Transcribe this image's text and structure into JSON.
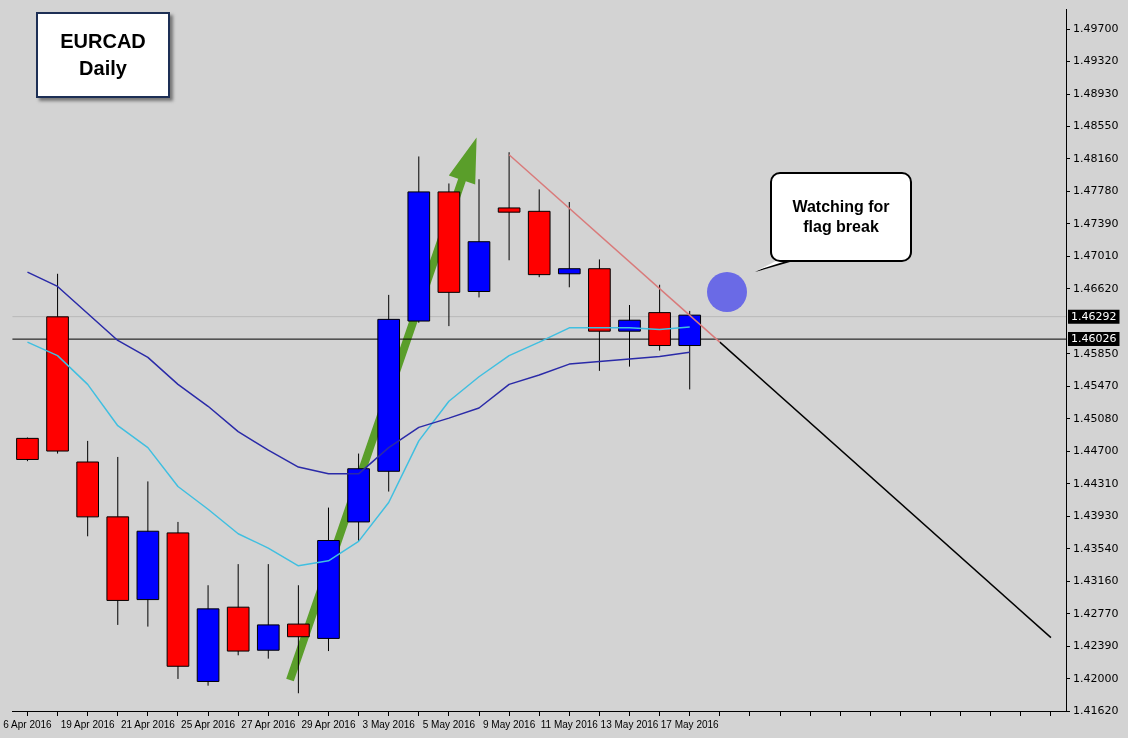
{
  "chart_data": {
    "type": "candlestick",
    "title": "EURCAD Daily",
    "annotations": [
      "Watching for flag break"
    ],
    "categories": [
      "6 Apr 2016",
      null,
      "19 Apr 2016",
      null,
      "21 Apr 2016",
      null,
      "25 Apr 2016",
      null,
      "27 Apr 2016",
      null,
      "29 Apr 2016",
      null,
      "3 May 2016",
      null,
      "5 May 2016",
      null,
      "9 May 2016",
      null,
      "11 May 2016",
      null,
      "13 May 2016",
      null,
      "17 May 2016",
      null,
      null,
      null,
      null,
      null,
      null,
      null,
      null,
      null,
      null,
      null,
      null
    ],
    "ohlc": [
      [
        1.4485,
        1.4486,
        1.4458,
        1.446
      ],
      [
        1.4629,
        1.468,
        1.4467,
        1.447
      ],
      [
        1.4457,
        1.4482,
        1.4369,
        1.4392
      ],
      [
        1.4392,
        1.4463,
        1.4264,
        1.4293
      ],
      [
        1.4294,
        1.4434,
        1.4262,
        1.4375
      ],
      [
        1.4373,
        1.4386,
        1.42,
        1.4215
      ],
      [
        1.4197,
        1.4311,
        1.4192,
        1.4283
      ],
      [
        1.4285,
        1.4336,
        1.4228,
        1.4233
      ],
      [
        1.4234,
        1.4336,
        1.4224,
        1.4264
      ],
      [
        1.4265,
        1.4311,
        1.4183,
        1.425
      ],
      [
        1.4248,
        1.4403,
        1.4233,
        1.4364
      ],
      [
        1.4386,
        1.4467,
        1.4363,
        1.4449
      ],
      [
        1.4446,
        1.4655,
        1.4422,
        1.4626
      ],
      [
        1.4624,
        1.4819,
        1.4622,
        1.4777
      ],
      [
        1.4777,
        1.4787,
        1.4618,
        1.4658
      ],
      [
        1.4659,
        1.4792,
        1.4652,
        1.4718
      ],
      [
        1.4758,
        1.4824,
        1.4696,
        1.4753
      ],
      [
        1.4754,
        1.478,
        1.4676,
        1.4679
      ],
      [
        1.468,
        1.4765,
        1.4664,
        1.4686
      ],
      [
        1.4686,
        1.4697,
        1.4565,
        1.4612
      ],
      [
        1.4612,
        1.4643,
        1.457,
        1.4625
      ],
      [
        1.4634,
        1.4667,
        1.4589,
        1.4595
      ],
      [
        1.4595,
        1.4636,
        1.4543,
        1.4631
      ],
      null,
      null,
      null,
      null,
      null,
      null,
      null,
      null,
      null,
      null,
      null,
      null
    ],
    "colors": [
      "#ff0000",
      "#ff0000",
      "#ff0000",
      "#ff0000",
      "#0000ff",
      "#ff0000",
      "#0000ff",
      "#ff0000",
      "#0000ff",
      "#ff0000",
      "#0000ff",
      "#0000ff",
      "#0000ff",
      "#0000ff",
      "#ff0000",
      "#0000ff",
      "#ff0000",
      "#ff0000",
      "#0000ff",
      "#ff0000",
      "#0000ff",
      "#ff0000",
      "#0000ff",
      null,
      null,
      null,
      null,
      null,
      null,
      null,
      null,
      null,
      null,
      null,
      null
    ],
    "series": [
      {
        "type": "line",
        "color": "#2a2aa8",
        "values": [
          1.4682,
          1.4665,
          1.4633,
          1.4601,
          1.4581,
          1.4549,
          1.4523,
          1.4493,
          1.4471,
          1.4451,
          1.4443,
          1.4443,
          1.4474,
          1.4498,
          1.4509,
          1.4521,
          1.4549,
          1.456,
          1.4573,
          1.4576,
          1.4579,
          1.4582,
          1.4587,
          null,
          null,
          null,
          null,
          null,
          null,
          null,
          null,
          null,
          null,
          null,
          null
        ]
      },
      {
        "type": "line",
        "color": "#40bfe0",
        "values": [
          1.4599,
          1.4583,
          1.4549,
          1.45,
          1.4474,
          1.4428,
          1.4401,
          1.4372,
          1.4355,
          1.4334,
          1.434,
          1.4363,
          1.4409,
          1.4482,
          1.4529,
          1.4558,
          1.4583,
          1.4599,
          1.4616,
          1.4616,
          1.4616,
          1.4614,
          1.4617,
          null,
          null,
          null,
          null,
          null,
          null,
          null,
          null,
          null,
          null,
          null,
          null
        ]
      },
      {
        "type": "line",
        "color": "#d97a7a",
        "values": [
          null,
          null,
          null,
          null,
          null,
          null,
          null,
          null,
          null,
          null,
          null,
          null,
          null,
          null,
          null,
          null,
          1.4821,
          null,
          null,
          null,
          null,
          null,
          null,
          1.4599,
          null,
          null,
          null,
          null,
          null,
          null,
          null,
          null,
          null,
          null,
          null
        ]
      },
      {
        "type": "line",
        "color": "#000000",
        "values": [
          null,
          null,
          null,
          null,
          null,
          null,
          null,
          null,
          null,
          null,
          null,
          null,
          null,
          null,
          null,
          null,
          null,
          null,
          null,
          null,
          null,
          null,
          null,
          1.4599,
          null,
          null,
          null,
          null,
          null,
          null,
          null,
          null,
          null,
          null,
          1.4249
        ]
      }
    ],
    "ylim": [
      1.4162,
      1.4993
    ],
    "yticks": [
      {
        "value": 1.497,
        "label": "1.49700"
      },
      {
        "value": 1.4932,
        "label": "1.49320"
      },
      {
        "value": 1.4893,
        "label": "1.48930"
      },
      {
        "value": 1.4855,
        "label": "1.48550"
      },
      {
        "value": 1.4816,
        "label": "1.48160"
      },
      {
        "value": 1.4778,
        "label": "1.47780"
      },
      {
        "value": 1.4739,
        "label": "1.47390"
      },
      {
        "value": 1.4701,
        "label": "1.47010"
      },
      {
        "value": 1.4662,
        "label": "1.46620"
      },
      {
        "value": 1.4585,
        "label": "1.45850"
      },
      {
        "value": 1.4547,
        "label": "1.45470"
      },
      {
        "value": 1.4508,
        "label": "1.45080"
      },
      {
        "value": 1.447,
        "label": "1.44700"
      },
      {
        "value": 1.4431,
        "label": "1.44310"
      },
      {
        "value": 1.4393,
        "label": "1.43930"
      },
      {
        "value": 1.4354,
        "label": "1.43540"
      },
      {
        "value": 1.4316,
        "label": "1.43160"
      },
      {
        "value": 1.4277,
        "label": "1.42770"
      },
      {
        "value": 1.4239,
        "label": "1.42390"
      },
      {
        "value": 1.42,
        "label": "1.42000"
      },
      {
        "value": 1.4162,
        "label": "1.41620"
      }
    ],
    "ref_lines": [
      {
        "axis": "y",
        "value": 1.46292,
        "label": "1.46292",
        "color": "#b8b8b8"
      },
      {
        "axis": "y",
        "value": 1.46026,
        "label": "1.46026",
        "color": "#000000"
      }
    ],
    "grid": false,
    "legend": false,
    "marker": "none",
    "line_style": "solid"
  }
}
